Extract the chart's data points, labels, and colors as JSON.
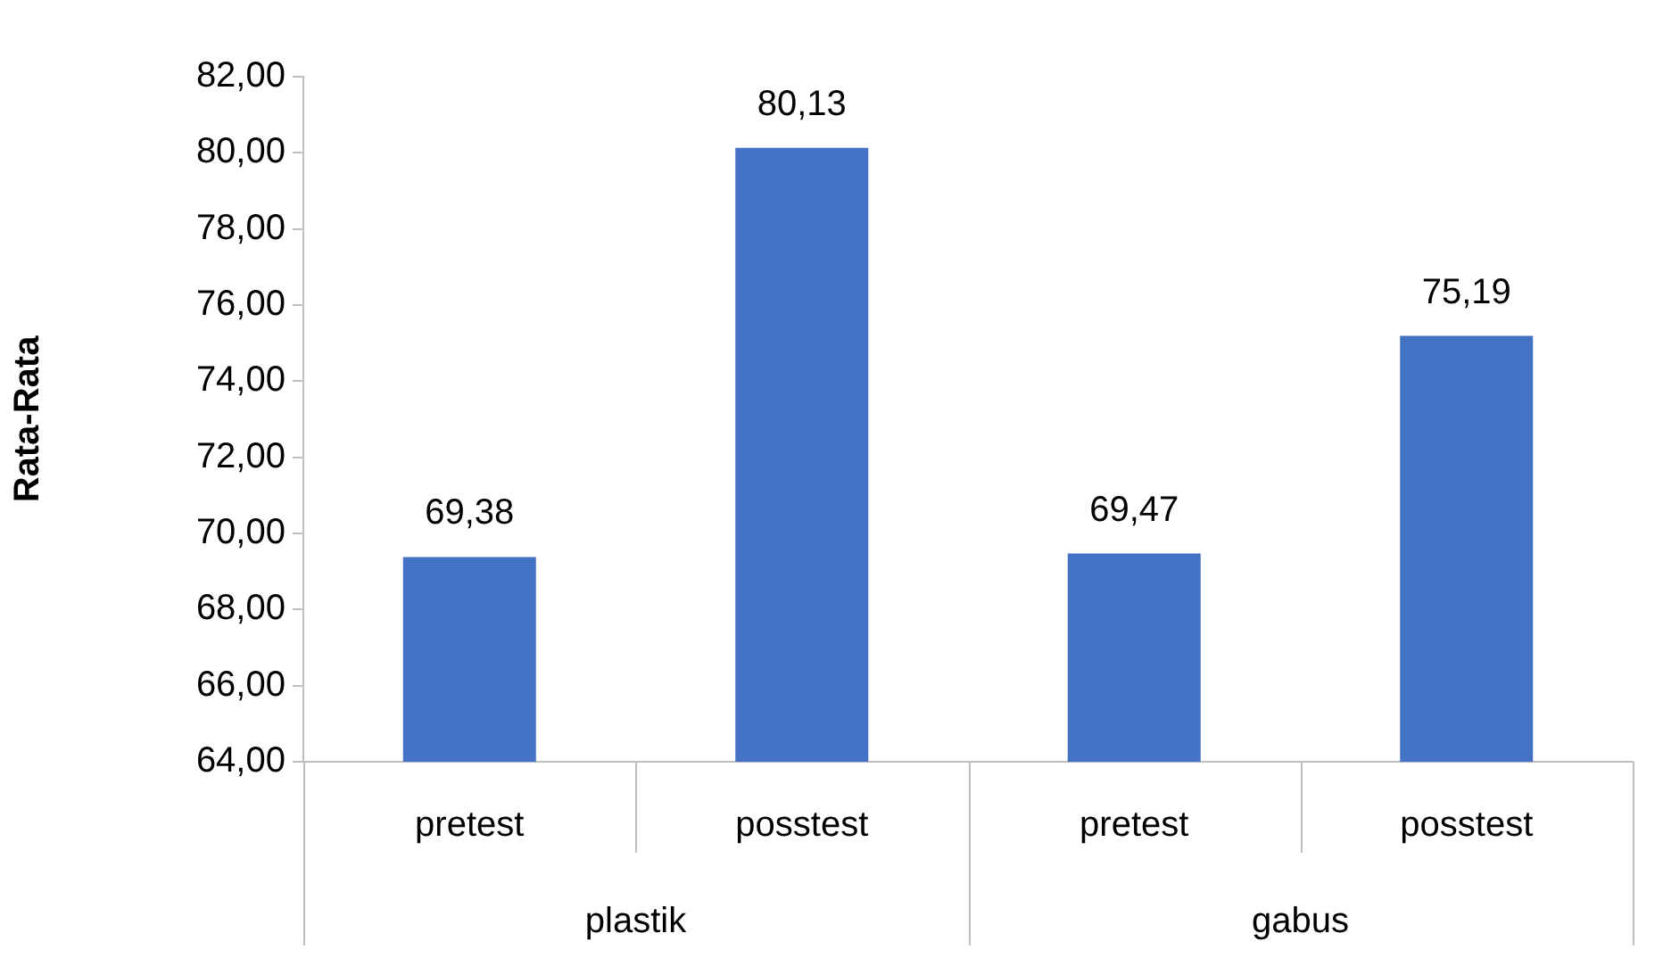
{
  "chart_data": {
    "type": "bar",
    "ylabel": "Rata-Rata",
    "categories": [
      "pretest",
      "posstest",
      "pretest",
      "posstest"
    ],
    "values": [
      69.38,
      80.13,
      69.47,
      75.19
    ],
    "value_labels": [
      "69,38",
      "80,13",
      "69,47",
      "75,19"
    ],
    "color": "#4472c4",
    "ylim": [
      64,
      82
    ],
    "yticks": [
      {
        "value": 64,
        "label": "64,00"
      },
      {
        "value": 66,
        "label": "66,00"
      },
      {
        "value": 68,
        "label": "68,00"
      },
      {
        "value": 70,
        "label": "70,00"
      },
      {
        "value": 72,
        "label": "72,00"
      },
      {
        "value": 74,
        "label": "74,00"
      },
      {
        "value": 76,
        "label": "76,00"
      },
      {
        "value": 78,
        "label": "78,00"
      },
      {
        "value": 80,
        "label": "80,00"
      },
      {
        "value": 82,
        "label": "82,00"
      }
    ],
    "annotations": [
      "plastik",
      "gabus"
    ],
    "grid": false,
    "legend": false
  }
}
